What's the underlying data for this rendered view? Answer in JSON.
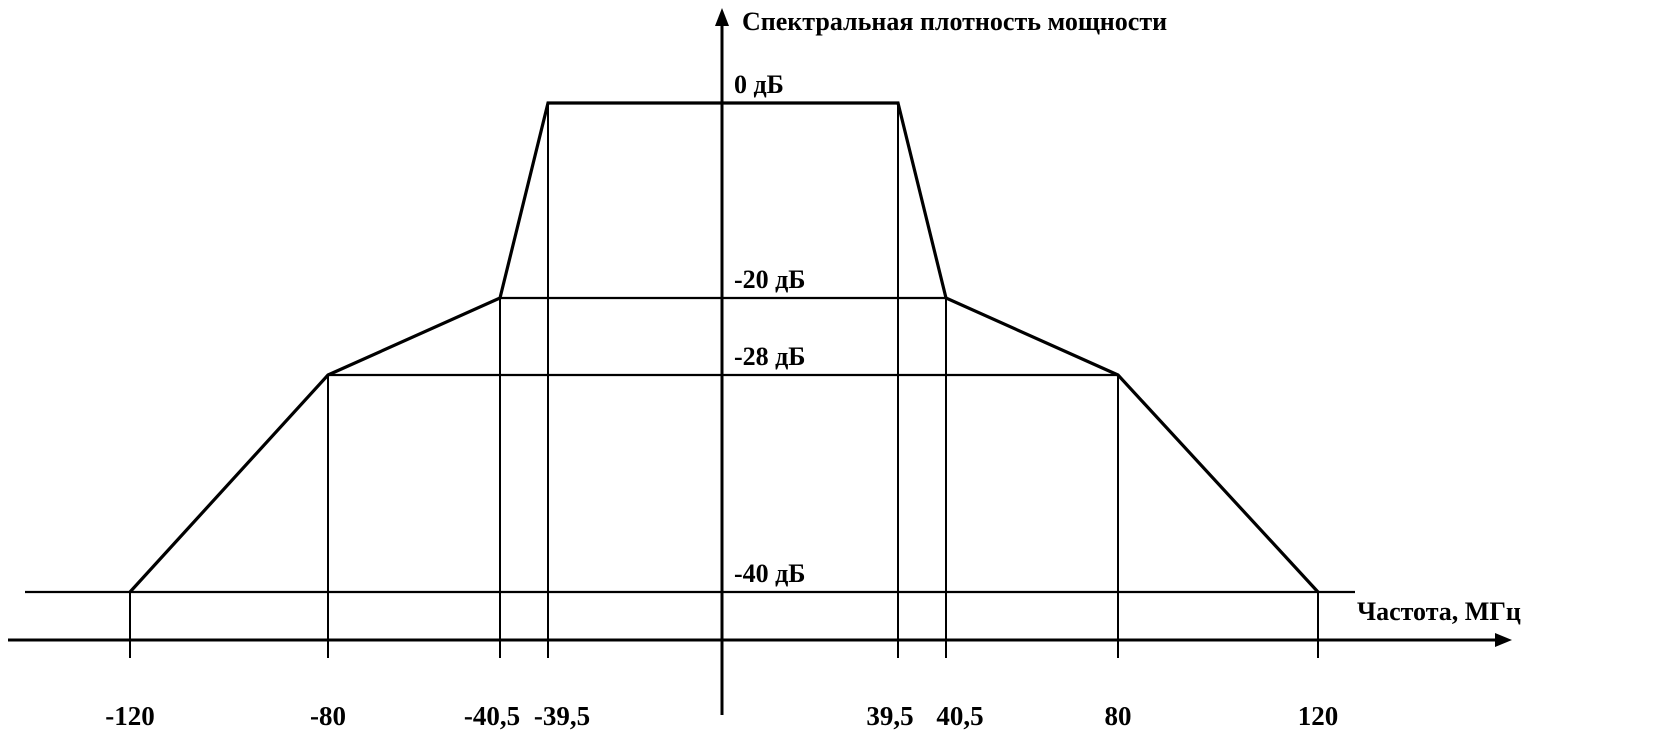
{
  "chart_data": {
    "type": "line",
    "title": "",
    "xlabel": "Частота, МГц",
    "ylabel": "Спектральная плотность мощности",
    "xlim": [
      -150,
      150
    ],
    "ylim": [
      -40,
      0
    ],
    "grid": false,
    "series": [
      {
        "x": [
          -120,
          -80,
          -40.5,
          -39.5,
          39.5,
          40.5,
          80,
          120
        ],
        "y": [
          -40,
          -28,
          -20,
          0,
          0,
          -20,
          -28,
          -40
        ]
      }
    ],
    "x_ticks": [
      {
        "value": -120,
        "label": "-120"
      },
      {
        "value": -80,
        "label": "-80"
      },
      {
        "value": -40.5,
        "label": "-40,5"
      },
      {
        "value": -39.5,
        "label": "-39,5"
      },
      {
        "value": 39.5,
        "label": "39,5"
      },
      {
        "value": 40.5,
        "label": "40,5"
      },
      {
        "value": 80,
        "label": "80"
      },
      {
        "value": 120,
        "label": "120"
      }
    ],
    "y_levels": [
      {
        "value": 0,
        "label": "0 дБ"
      },
      {
        "value": -20,
        "label": "-20 дБ"
      },
      {
        "value": -28,
        "label": "-28 дБ"
      },
      {
        "value": -40,
        "label": "-40 дБ"
      }
    ]
  }
}
